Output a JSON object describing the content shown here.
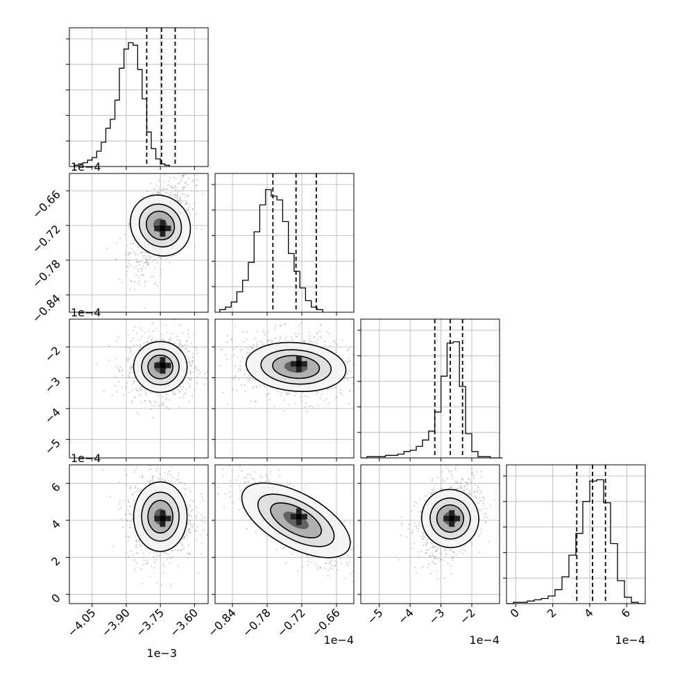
{
  "chart_data": {
    "type": "corner",
    "parameters": [
      {
        "name": "p0",
        "offset_label": "1e−3",
        "range": [
          -4.15,
          -3.54
        ],
        "ticks": [
          -4.05,
          -3.9,
          -3.75,
          -3.6
        ],
        "tick_labels": [
          "−4.05",
          "−3.90",
          "−3.75",
          "−3.60"
        ],
        "quantiles": [
          -3.81,
          -3.745,
          -3.685
        ],
        "hist": {
          "edges_start": -4.13,
          "bin_width": 0.02,
          "counts": [
            0.01,
            0.02,
            0.03,
            0.05,
            0.07,
            0.12,
            0.19,
            0.3,
            0.37,
            0.52,
            0.77,
            0.92,
            0.97,
            0.95,
            0.76,
            0.53,
            0.27,
            0.14,
            0.06,
            0.02,
            0.01
          ],
          "ymax": 1.0
        }
      },
      {
        "name": "p1",
        "offset_label": "1e−4",
        "range": [
          -0.87,
          -0.63
        ],
        "ticks": [
          -0.84,
          -0.78,
          -0.72,
          -0.66
        ],
        "tick_labels": [
          "−0.84",
          "−0.78",
          "−0.72",
          "−0.66"
        ],
        "quantiles": [
          -0.77,
          -0.73,
          -0.695
        ],
        "hist": {
          "edges_start": -0.862,
          "bin_width": 0.0099,
          "counts": [
            0.02,
            0.04,
            0.08,
            0.16,
            0.25,
            0.39,
            0.63,
            0.84,
            0.96,
            0.91,
            0.88,
            0.71,
            0.46,
            0.32,
            0.19,
            0.09,
            0.04,
            0.02
          ],
          "ymax": 1.0
        }
      },
      {
        "name": "p2",
        "offset_label": "1e−4",
        "range": [
          -5.6,
          -1.1
        ],
        "ticks": [
          -5,
          -4,
          -3,
          -2
        ],
        "tick_labels": [
          "−5",
          "−4",
          "−3",
          "−2"
        ],
        "quantiles": [
          -3.2,
          -2.7,
          -2.3
        ],
        "hist": {
          "edges_start": -5.6,
          "bin_width": 0.2,
          "counts": [
            0.0,
            0.01,
            0.01,
            0.01,
            0.02,
            0.02,
            0.03,
            0.05,
            0.06,
            0.09,
            0.14,
            0.21,
            0.36,
            0.64,
            0.9,
            0.91,
            0.56,
            0.19,
            0.05,
            0.01,
            0.01,
            0.0,
            0.0
          ],
          "ymax": 1.0
        }
      },
      {
        "name": "p3",
        "offset_label": "1e−4",
        "range": [
          -0.5,
          7.0
        ],
        "ticks": [
          0,
          2,
          4,
          6
        ],
        "tick_labels": [
          "0",
          "2",
          "4",
          "6"
        ],
        "quantiles": [
          3.3,
          4.15,
          4.85
        ],
        "hist": {
          "edges_start": -0.5,
          "bin_width": 0.375,
          "counts": [
            0.0,
            0.01,
            0.01,
            0.02,
            0.03,
            0.04,
            0.06,
            0.11,
            0.21,
            0.38,
            0.55,
            0.8,
            0.96,
            0.97,
            0.79,
            0.47,
            0.18,
            0.05,
            0.01,
            0.0
          ],
          "ymax": 1.0
        }
      }
    ],
    "pairs": [
      {
        "x": 0,
        "y": 1,
        "center": [
          -3.75,
          -0.72
        ],
        "spread": [
          0.045,
          0.028
        ],
        "rho": 0.55,
        "peak": [
          -3.74,
          -0.725
        ]
      },
      {
        "x": 0,
        "y": 2,
        "center": [
          -3.75,
          -2.65
        ],
        "spread": [
          0.05,
          0.35
        ],
        "rho": 0.0,
        "peak": [
          -3.74,
          -2.6
        ]
      },
      {
        "x": 1,
        "y": 2,
        "center": [
          -0.73,
          -2.65
        ],
        "spread": [
          0.035,
          0.35
        ],
        "rho": -0.15,
        "peak": [
          -0.725,
          -2.55
        ]
      },
      {
        "x": 0,
        "y": 3,
        "center": [
          -3.75,
          4.2
        ],
        "spread": [
          0.05,
          0.8
        ],
        "rho": 0.0,
        "peak": [
          -3.74,
          4.1
        ]
      },
      {
        "x": 1,
        "y": 3,
        "center": [
          -0.73,
          4.0
        ],
        "spread": [
          0.035,
          0.8
        ],
        "rho": -0.75,
        "peak": [
          -0.725,
          4.2
        ]
      },
      {
        "x": 2,
        "y": 3,
        "center": [
          -2.7,
          4.1
        ],
        "spread": [
          0.35,
          0.75
        ],
        "rho": 0.35,
        "peak": [
          -2.65,
          4.1
        ]
      }
    ],
    "grid": true
  }
}
